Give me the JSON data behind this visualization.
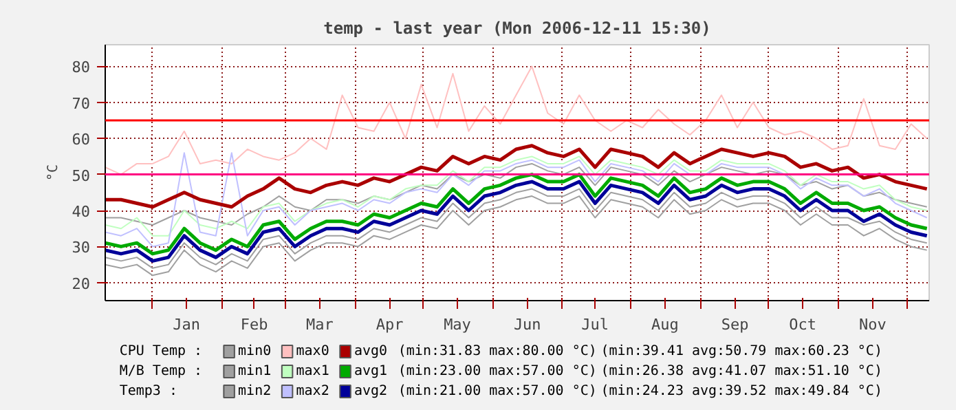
{
  "chart_data": {
    "type": "line",
    "title": "temp - last year (Mon 2006-12-11 15:30)",
    "ylabel": "°C",
    "x": [
      "2005-12-11",
      "2005-12-18",
      "2005-12-25",
      "2006-01-01",
      "2006-01-08",
      "2006-01-15",
      "2006-01-22",
      "2006-01-29",
      "2006-02-05",
      "2006-02-12",
      "2006-02-19",
      "2006-02-26",
      "2006-03-05",
      "2006-03-12",
      "2006-03-19",
      "2006-03-26",
      "2006-04-02",
      "2006-04-09",
      "2006-04-16",
      "2006-04-23",
      "2006-04-30",
      "2006-05-07",
      "2006-05-14",
      "2006-05-21",
      "2006-05-28",
      "2006-06-04",
      "2006-06-11",
      "2006-06-18",
      "2006-06-25",
      "2006-07-02",
      "2006-07-09",
      "2006-07-16",
      "2006-07-23",
      "2006-07-30",
      "2006-08-06",
      "2006-08-13",
      "2006-08-20",
      "2006-08-27",
      "2006-09-03",
      "2006-09-10",
      "2006-09-17",
      "2006-09-24",
      "2006-10-01",
      "2006-10-08",
      "2006-10-15",
      "2006-10-22",
      "2006-10-29",
      "2006-11-05",
      "2006-11-12",
      "2006-11-19",
      "2006-11-26",
      "2006-12-03",
      "2006-12-10"
    ],
    "xlim": [
      "2005-12-11",
      "2006-12-11"
    ],
    "xticks": [
      {
        "value": "2006-01-01",
        "label": null
      },
      {
        "value": "2006-01-16",
        "label": "Jan"
      },
      {
        "value": "2006-02-01",
        "label": null
      },
      {
        "value": "2006-02-15",
        "label": "Feb"
      },
      {
        "value": "2006-03-01",
        "label": null
      },
      {
        "value": "2006-03-16",
        "label": "Mar"
      },
      {
        "value": "2006-04-01",
        "label": null
      },
      {
        "value": "2006-04-16",
        "label": "Apr"
      },
      {
        "value": "2006-05-01",
        "label": null
      },
      {
        "value": "2006-05-16",
        "label": "May"
      },
      {
        "value": "2006-06-01",
        "label": null
      },
      {
        "value": "2006-06-16",
        "label": "Jun"
      },
      {
        "value": "2006-07-01",
        "label": null
      },
      {
        "value": "2006-07-16",
        "label": "Jul"
      },
      {
        "value": "2006-08-01",
        "label": null
      },
      {
        "value": "2006-08-16",
        "label": "Aug"
      },
      {
        "value": "2006-09-01",
        "label": null
      },
      {
        "value": "2006-09-16",
        "label": "Sep"
      },
      {
        "value": "2006-10-01",
        "label": null
      },
      {
        "value": "2006-10-16",
        "label": "Oct"
      },
      {
        "value": "2006-11-01",
        "label": null
      },
      {
        "value": "2006-11-16",
        "label": "Nov"
      },
      {
        "value": "2006-12-01",
        "label": null
      }
    ],
    "ylim": [
      15,
      86
    ],
    "yticks": [
      20,
      30,
      40,
      50,
      60,
      70,
      80
    ],
    "grid": true,
    "legend": "bottom",
    "series": [
      {
        "name": "min0",
        "color": "#a0a0a0",
        "values": [
          38,
          38,
          37,
          36,
          38,
          40,
          38,
          37,
          36,
          39,
          41,
          44,
          41,
          40,
          43,
          43,
          42,
          44,
          43,
          45,
          47,
          46,
          50,
          48,
          50,
          49,
          52,
          53,
          51,
          50,
          52,
          47,
          52,
          51,
          50,
          47,
          51,
          48,
          50,
          52,
          51,
          50,
          51,
          50,
          47,
          48,
          46,
          47,
          44,
          45,
          43,
          42,
          41
        ]
      },
      {
        "name": "max0",
        "color": "#ffc0c0",
        "values": [
          52,
          50,
          53,
          53,
          55,
          62,
          53,
          54,
          53,
          57,
          55,
          54,
          56,
          60,
          57,
          72,
          63,
          62,
          70,
          60,
          75,
          63,
          78,
          62,
          69,
          64,
          72,
          80,
          67,
          64,
          72,
          65,
          62,
          65,
          63,
          68,
          64,
          61,
          65,
          72,
          63,
          70,
          63,
          61,
          62,
          60,
          57,
          58,
          71,
          58,
          57,
          64,
          60
        ]
      },
      {
        "name": "avg0",
        "color": "#aa0000",
        "values": [
          43,
          43,
          42,
          41,
          43,
          45,
          43,
          42,
          41,
          44,
          46,
          49,
          46,
          45,
          47,
          48,
          47,
          49,
          48,
          50,
          52,
          51,
          55,
          53,
          55,
          54,
          57,
          58,
          56,
          55,
          57,
          52,
          57,
          56,
          55,
          52,
          56,
          53,
          55,
          57,
          56,
          55,
          56,
          55,
          52,
          53,
          51,
          52,
          49,
          50,
          48,
          47,
          46
        ]
      },
      {
        "name": "min1",
        "color": "#a0a0a0",
        "values": [
          27,
          26,
          27,
          24,
          25,
          31,
          27,
          25,
          28,
          26,
          32,
          33,
          28,
          31,
          33,
          33,
          32,
          35,
          34,
          36,
          38,
          37,
          42,
          38,
          42,
          43,
          45,
          46,
          44,
          44,
          46,
          40,
          45,
          44,
          43,
          40,
          45,
          41,
          42,
          45,
          43,
          44,
          44,
          42,
          38,
          41,
          38,
          38,
          36,
          37,
          34,
          32,
          31
        ]
      },
      {
        "name": "max1",
        "color": "#c0ffc0",
        "values": [
          36,
          35,
          38,
          33,
          33,
          40,
          36,
          35,
          37,
          35,
          41,
          42,
          37,
          40,
          42,
          43,
          41,
          44,
          43,
          46,
          47,
          47,
          51,
          48,
          52,
          52,
          54,
          55,
          53,
          53,
          55,
          50,
          54,
          53,
          52,
          50,
          54,
          51,
          51,
          54,
          53,
          53,
          53,
          51,
          47,
          50,
          48,
          48,
          46,
          47,
          43,
          41,
          40
        ]
      },
      {
        "name": "avg1",
        "color": "#00aa00",
        "values": [
          31,
          30,
          31,
          28,
          29,
          35,
          31,
          29,
          32,
          30,
          36,
          37,
          32,
          35,
          37,
          37,
          36,
          39,
          38,
          40,
          42,
          41,
          46,
          42,
          46,
          47,
          49,
          50,
          48,
          48,
          50,
          44,
          49,
          48,
          47,
          44,
          49,
          45,
          46,
          49,
          47,
          48,
          48,
          46,
          42,
          45,
          42,
          42,
          40,
          41,
          38,
          36,
          35
        ]
      },
      {
        "name": "min2",
        "color": "#a0a0a0",
        "values": [
          25,
          24,
          25,
          22,
          23,
          29,
          25,
          23,
          26,
          24,
          30,
          31,
          26,
          29,
          31,
          31,
          30,
          33,
          32,
          34,
          36,
          35,
          40,
          36,
          40,
          41,
          43,
          44,
          42,
          42,
          44,
          38,
          43,
          42,
          41,
          38,
          43,
          39,
          40,
          43,
          41,
          42,
          42,
          40,
          36,
          39,
          36,
          36,
          33,
          35,
          32,
          30,
          29
        ]
      },
      {
        "name": "max2",
        "color": "#c0c0ff",
        "values": [
          34,
          33,
          35,
          30,
          31,
          56,
          34,
          33,
          56,
          33,
          40,
          41,
          36,
          40,
          41,
          42,
          40,
          43,
          42,
          45,
          46,
          45,
          50,
          47,
          51,
          51,
          53,
          54,
          52,
          52,
          54,
          48,
          53,
          52,
          51,
          48,
          53,
          50,
          50,
          53,
          52,
          52,
          52,
          50,
          46,
          49,
          47,
          47,
          44,
          46,
          42,
          40,
          38
        ]
      },
      {
        "name": "avg2",
        "color": "#000099",
        "values": [
          29,
          28,
          29,
          26,
          27,
          33,
          29,
          27,
          30,
          28,
          34,
          35,
          30,
          33,
          35,
          35,
          34,
          37,
          36,
          38,
          40,
          39,
          44,
          40,
          44,
          45,
          47,
          48,
          46,
          46,
          48,
          42,
          47,
          46,
          45,
          42,
          47,
          43,
          44,
          47,
          45,
          46,
          46,
          44,
          40,
          43,
          40,
          40,
          37,
          39,
          36,
          34,
          33
        ]
      }
    ],
    "ref_lines": [
      {
        "axis": "y",
        "value": 65,
        "color": "#ff0000"
      },
      {
        "axis": "y",
        "value": 50,
        "color": "#ff0080"
      }
    ],
    "annotations": [
      "CPU Temp :",
      "(min:31.83 max:80.00 °C)",
      "(min:39.41 avg:50.79 max:60.23 °C)",
      "M/B Temp :",
      "(min:23.00 max:57.00 °C)",
      "(min:26.38 avg:41.07 max:51.10 °C)",
      "Temp3 :",
      "(min:21.00 max:57.00 °C)",
      "(min:24.23 avg:39.52 max:49.84 °C)"
    ]
  }
}
